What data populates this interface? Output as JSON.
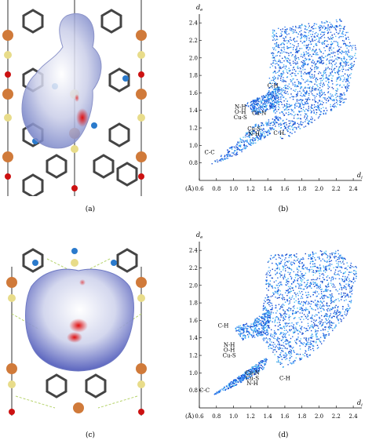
{
  "panels": {
    "a": {
      "caption": "(a)"
    },
    "b": {
      "caption": "(b)"
    },
    "c": {
      "caption": "(c)"
    },
    "d": {
      "caption": "(d)"
    }
  },
  "plot_common": {
    "y_axis_symbol": "d",
    "y_axis_subscript": "e",
    "x_axis_symbol": "d",
    "x_axis_subscript": "i",
    "unit_label": "(Å)"
  },
  "chart_data": [
    {
      "type": "scatter",
      "panel": "b",
      "title": "",
      "xlabel": "d_i",
      "ylabel": "d_e",
      "xlim": [
        0.6,
        2.5
      ],
      "ylim": [
        0.6,
        2.5
      ],
      "x_ticks": [
        "0.6",
        "0.8",
        "1.0",
        "1.2",
        "1.4",
        "1.6",
        "1.8",
        "2.0",
        "2.2",
        "2.4"
      ],
      "y_ticks": [
        "0.8",
        "1.0",
        "1.2",
        "1.4",
        "1.6",
        "1.8",
        "2.0",
        "2.2",
        "2.4"
      ],
      "annotations": [
        {
          "text": "C-H",
          "x": 1.46,
          "y": 1.66
        },
        {
          "text": "N-H",
          "x": 1.08,
          "y": 1.42
        },
        {
          "text": "O-H",
          "x": 1.08,
          "y": 1.36
        },
        {
          "text": "Cu-S",
          "x": 1.08,
          "y": 1.3
        },
        {
          "text": "Cu-N",
          "x": 1.3,
          "y": 1.35
        },
        {
          "text": "Cu-S",
          "x": 1.24,
          "y": 1.17
        },
        {
          "text": "N-H",
          "x": 1.24,
          "y": 1.11
        },
        {
          "text": "C-H",
          "x": 1.53,
          "y": 1.12
        },
        {
          "text": "C-C",
          "x": 0.72,
          "y": 0.9
        }
      ],
      "regions": [
        {
          "name": "main-cloud",
          "points": [
            [
              1.45,
              2.35
            ],
            [
              2.25,
              2.45
            ],
            [
              2.45,
              2.1
            ],
            [
              2.3,
              1.5
            ],
            [
              1.8,
              1.2
            ],
            [
              1.55,
              1.05
            ],
            [
              1.4,
              1.55
            ]
          ]
        },
        {
          "name": "lower-spike",
          "points": [
            [
              0.72,
              0.78
            ],
            [
              1.25,
              1.25
            ],
            [
              1.55,
              1.35
            ],
            [
              1.45,
              1.15
            ],
            [
              1.0,
              0.88
            ]
          ]
        },
        {
          "name": "upper-spike",
          "points": [
            [
              1.12,
              1.48
            ],
            [
              1.35,
              1.58
            ],
            [
              1.55,
              1.7
            ],
            [
              1.5,
              1.45
            ],
            [
              1.25,
              1.35
            ]
          ]
        }
      ]
    },
    {
      "type": "scatter",
      "panel": "d",
      "title": "",
      "xlabel": "d_i",
      "ylabel": "d_e",
      "xlim": [
        0.6,
        2.5
      ],
      "ylim": [
        0.6,
        2.5
      ],
      "x_ticks": [
        "0.6",
        "0.8",
        "1.0",
        "1.2",
        "1.4",
        "1.6",
        "1.8",
        "2.0",
        "2.2",
        "2.4"
      ],
      "y_ticks": [
        "0.8",
        "1.0",
        "1.2",
        "1.4",
        "1.6",
        "1.8",
        "2.0",
        "2.2",
        "2.4"
      ],
      "annotations": [
        {
          "text": "C-H",
          "x": 0.88,
          "y": 1.52
        },
        {
          "text": "N-H",
          "x": 0.95,
          "y": 1.3
        },
        {
          "text": "O-H",
          "x": 0.95,
          "y": 1.24
        },
        {
          "text": "Cu-S",
          "x": 0.95,
          "y": 1.18
        },
        {
          "text": "Cu-N",
          "x": 1.22,
          "y": 0.98
        },
        {
          "text": "Cu-S",
          "x": 1.22,
          "y": 0.92
        },
        {
          "text": "N-H",
          "x": 1.22,
          "y": 0.86
        },
        {
          "text": "C-H",
          "x": 1.6,
          "y": 0.92
        },
        {
          "text": "C-C",
          "x": 0.66,
          "y": 0.78
        }
      ],
      "regions": [
        {
          "name": "main-cloud",
          "points": [
            [
              1.4,
              2.35
            ],
            [
              2.2,
              2.42
            ],
            [
              2.45,
              2.2
            ],
            [
              2.35,
              1.7
            ],
            [
              1.9,
              1.2
            ],
            [
              1.55,
              1.05
            ],
            [
              1.3,
              1.45
            ]
          ]
        },
        {
          "name": "lower-spike",
          "points": [
            [
              0.75,
              0.75
            ],
            [
              1.1,
              1.0
            ],
            [
              1.4,
              1.2
            ],
            [
              1.35,
              1.05
            ],
            [
              1.0,
              0.85
            ]
          ]
        },
        {
          "name": "upper-spike",
          "points": [
            [
              1.0,
              1.52
            ],
            [
              1.2,
              1.6
            ],
            [
              1.45,
              1.75
            ],
            [
              1.4,
              1.45
            ],
            [
              1.1,
              1.38
            ]
          ]
        }
      ]
    }
  ]
}
